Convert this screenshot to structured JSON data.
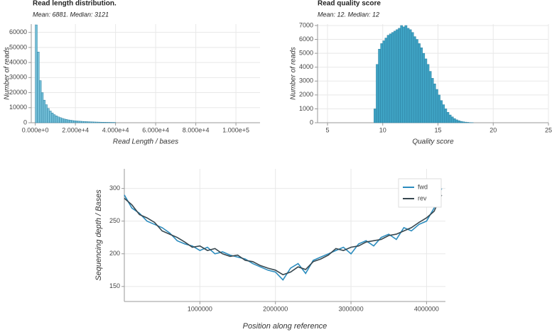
{
  "chart_data": [
    {
      "type": "histogram",
      "title": "Read length distribution.",
      "subtitle": "Mean: 6881. Median: 3121",
      "x_label": "Read Length / bases",
      "y_label": "Number of reads",
      "color": "#74bfd8",
      "grid": true,
      "bins": [
        0,
        1000,
        2000,
        3000,
        4000,
        5000,
        6000,
        7000,
        8000,
        9000,
        10000,
        11000,
        12000,
        13000,
        14000,
        15000,
        16000,
        17000,
        18000,
        19000,
        20000,
        21000,
        22000,
        23000,
        24000,
        25000,
        26000,
        27000,
        28000,
        29000,
        30000,
        31000,
        32000,
        33000,
        34000,
        35000,
        36000,
        37000,
        38000,
        39000,
        40000
      ],
      "values": [
        65000,
        47000,
        28000,
        20000,
        15000,
        12000,
        9500,
        7800,
        6500,
        5400,
        4600,
        3900,
        3400,
        2900,
        2500,
        2200,
        1900,
        1700,
        1500,
        1350,
        1200,
        1100,
        1000,
        900,
        820,
        750,
        680,
        620,
        560,
        500,
        460,
        420,
        380,
        350,
        320,
        290,
        260,
        240,
        220,
        200
      ],
      "xlim": [
        -2000,
        112000
      ],
      "ylim": [
        0,
        65500
      ],
      "xticks": [
        {
          "value": 0,
          "label": "0.000e+0"
        },
        {
          "value": 20000,
          "label": "2.000e+4"
        },
        {
          "value": 40000,
          "label": "4.000e+4"
        },
        {
          "value": 60000,
          "label": "6.000e+4"
        },
        {
          "value": 80000,
          "label": "8.000e+4"
        },
        {
          "value": 100000,
          "label": "1.000e+5"
        }
      ],
      "yticks": [
        0,
        10000,
        20000,
        30000,
        40000,
        50000,
        60000
      ]
    },
    {
      "type": "histogram",
      "title": "Read quality score",
      "subtitle": "Mean: 12. Median: 12",
      "x_label": "Quality score",
      "y_label": "Number of reads",
      "color": "#3fa3c4",
      "grid": true,
      "bins": [
        9.2,
        9.4,
        9.6,
        9.8,
        10.0,
        10.2,
        10.4,
        10.6,
        10.8,
        11.0,
        11.2,
        11.4,
        11.6,
        11.8,
        12.0,
        12.2,
        12.4,
        12.6,
        12.8,
        13.0,
        13.2,
        13.4,
        13.6,
        13.8,
        14.0,
        14.2,
        14.4,
        14.6,
        14.8,
        15.0,
        15.2,
        15.4,
        15.6,
        15.8,
        16.0,
        16.2,
        16.4,
        16.6,
        16.8,
        17.0,
        17.2,
        17.4,
        17.6,
        17.8,
        18.0,
        18.2
      ],
      "values": [
        1000,
        4200,
        5300,
        5700,
        5900,
        6100,
        6300,
        6400,
        6500,
        6600,
        6700,
        6800,
        7000,
        6900,
        7000,
        6800,
        6700,
        6500,
        6200,
        6000,
        5700,
        5400,
        5000,
        4600,
        4200,
        3700,
        3200,
        2800,
        2400,
        2000,
        1600,
        1300,
        1000,
        750,
        560,
        420,
        300,
        210,
        150,
        100,
        70,
        45,
        30,
        15,
        8
      ],
      "xlim": [
        4.1,
        25
      ],
      "ylim": [
        0,
        7100
      ],
      "xticks": [
        5,
        10,
        15,
        20,
        25
      ],
      "yticks": [
        0,
        1000,
        2000,
        3000,
        4000,
        5000,
        6000,
        7000
      ]
    },
    {
      "type": "line",
      "x_label": "Position along reference",
      "y_label": "Sequencing depth / Bases",
      "grid": true,
      "legend": "upper right",
      "x": [
        0,
        100000,
        200000,
        300000,
        400000,
        500000,
        600000,
        700000,
        800000,
        900000,
        1000000,
        1100000,
        1200000,
        1300000,
        1400000,
        1500000,
        1600000,
        1700000,
        1800000,
        1900000,
        2000000,
        2100000,
        2200000,
        2300000,
        2400000,
        2500000,
        2600000,
        2700000,
        2800000,
        2900000,
        3000000,
        3100000,
        3200000,
        3300000,
        3400000,
        3500000,
        3600000,
        3700000,
        3800000,
        3900000,
        4000000,
        4100000,
        4200000
      ],
      "series": [
        {
          "name": "fwd",
          "color": "#2b8cbe",
          "values": [
            290,
            270,
            262,
            250,
            245,
            240,
            232,
            220,
            215,
            212,
            205,
            210,
            200,
            203,
            198,
            195,
            192,
            185,
            180,
            175,
            172,
            160,
            178,
            185,
            170,
            190,
            195,
            200,
            205,
            210,
            200,
            215,
            220,
            212,
            225,
            230,
            222,
            240,
            235,
            245,
            250,
            270,
            300
          ]
        },
        {
          "name": "rev",
          "color": "#37474f",
          "values": [
            285,
            275,
            260,
            255,
            248,
            235,
            230,
            225,
            218,
            210,
            212,
            205,
            208,
            200,
            196,
            198,
            190,
            188,
            182,
            178,
            175,
            168,
            172,
            180,
            176,
            188,
            192,
            198,
            208,
            205,
            210,
            212,
            218,
            220,
            222,
            228,
            230,
            235,
            240,
            248,
            255,
            265,
            290
          ]
        }
      ],
      "xlim": [
        0,
        4250000
      ],
      "ylim": [
        127,
        330
      ],
      "xticks": [
        1000000,
        2000000,
        3000000,
        4000000
      ],
      "yticks": [
        150,
        200,
        250,
        300
      ]
    }
  ]
}
